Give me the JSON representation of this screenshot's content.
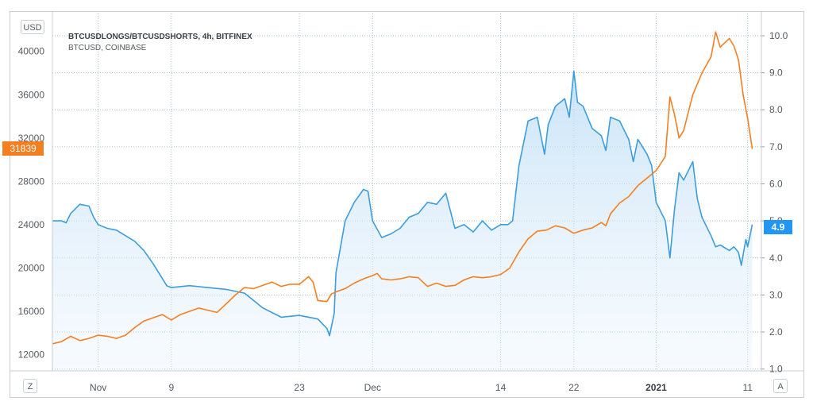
{
  "legend": {
    "series1": "BTCUSDLONGS/BTCUSDSHORTS, 4h, BITFINEX",
    "series2": "BTCUSD, COINBASE"
  },
  "buttons": {
    "currency": "USD",
    "zoom": "Z",
    "auto": "A"
  },
  "tags": {
    "left_price": "31839",
    "right_ratio": "4.9"
  },
  "colors": {
    "ratio_line": "#3b9ddd",
    "ratio_fill_top": "#cfe6f8",
    "price_line": "#f57f20",
    "grid": "#9fc3c9"
  },
  "chart_data": {
    "type": "line",
    "left_axis": {
      "ticks": [
        12000,
        16000,
        20000,
        24000,
        28000,
        32000,
        36000,
        40000
      ],
      "ylim": [
        10500,
        43500
      ]
    },
    "right_axis": {
      "ticks": [
        1.0,
        2.0,
        3.0,
        4.0,
        5.0,
        6.0,
        7.0,
        8.0,
        9.0,
        10.0
      ],
      "ylim": [
        0.95,
        10.6
      ]
    },
    "x_labels": [
      {
        "label": "Nov",
        "day": 5,
        "bold": false
      },
      {
        "label": "9",
        "day": 13,
        "bold": false
      },
      {
        "label": "23",
        "day": 27,
        "bold": false
      },
      {
        "label": "Dec",
        "day": 35,
        "bold": false
      },
      {
        "label": "14",
        "day": 49,
        "bold": false
      },
      {
        "label": "22",
        "day": 57,
        "bold": false
      },
      {
        "label": "2021",
        "day": 66,
        "bold": true
      },
      {
        "label": "11",
        "day": 76,
        "bold": false
      }
    ],
    "xlim": [
      0,
      77.5
    ],
    "series": [
      {
        "name": "BTCUSDLONGS/BTCUSDSHORTS",
        "axis": "right",
        "points": [
          [
            0,
            5.0
          ],
          [
            1,
            5.0
          ],
          [
            1.5,
            4.95
          ],
          [
            2,
            5.2
          ],
          [
            3,
            5.45
          ],
          [
            4,
            5.4
          ],
          [
            4.5,
            5.1
          ],
          [
            5,
            4.9
          ],
          [
            6,
            4.8
          ],
          [
            7,
            4.75
          ],
          [
            8,
            4.6
          ],
          [
            9,
            4.45
          ],
          [
            10,
            4.2
          ],
          [
            11,
            3.85
          ],
          [
            12,
            3.45
          ],
          [
            12.5,
            3.25
          ],
          [
            13,
            3.2
          ],
          [
            15,
            3.25
          ],
          [
            17,
            3.2
          ],
          [
            19,
            3.15
          ],
          [
            21,
            3.05
          ],
          [
            23,
            2.65
          ],
          [
            25,
            2.4
          ],
          [
            27,
            2.45
          ],
          [
            29,
            2.35
          ],
          [
            30,
            2.1
          ],
          [
            30.3,
            1.9
          ],
          [
            30.8,
            2.5
          ],
          [
            31,
            3.6
          ],
          [
            32,
            5.0
          ],
          [
            33,
            5.5
          ],
          [
            34,
            5.85
          ],
          [
            34.5,
            5.8
          ],
          [
            35,
            5.0
          ],
          [
            36,
            4.55
          ],
          [
            37,
            4.65
          ],
          [
            38,
            4.8
          ],
          [
            39,
            5.1
          ],
          [
            40,
            5.2
          ],
          [
            41,
            5.5
          ],
          [
            42,
            5.45
          ],
          [
            43,
            5.75
          ],
          [
            44,
            4.8
          ],
          [
            45,
            4.9
          ],
          [
            46,
            4.7
          ],
          [
            47,
            5.0
          ],
          [
            48,
            4.75
          ],
          [
            49,
            4.9
          ],
          [
            49.8,
            4.9
          ],
          [
            50.3,
            5.0
          ],
          [
            51,
            6.5
          ],
          [
            52,
            7.7
          ],
          [
            53,
            7.8
          ],
          [
            53.8,
            6.8
          ],
          [
            54.2,
            7.6
          ],
          [
            55,
            8.1
          ],
          [
            56,
            8.3
          ],
          [
            56.5,
            7.8
          ],
          [
            57,
            9.05
          ],
          [
            57.4,
            8.2
          ],
          [
            58,
            8.1
          ],
          [
            59,
            7.5
          ],
          [
            60,
            7.3
          ],
          [
            60.5,
            6.9
          ],
          [
            61,
            7.8
          ],
          [
            62,
            7.7
          ],
          [
            63,
            7.2
          ],
          [
            63.5,
            6.6
          ],
          [
            64,
            7.2
          ],
          [
            65,
            6.8
          ],
          [
            65.5,
            6.5
          ],
          [
            66,
            5.5
          ],
          [
            67,
            5.0
          ],
          [
            67.5,
            4.0
          ],
          [
            68,
            5.3
          ],
          [
            68.5,
            6.3
          ],
          [
            69,
            6.1
          ],
          [
            70,
            6.6
          ],
          [
            70.5,
            5.6
          ],
          [
            71,
            5.1
          ],
          [
            72,
            4.6
          ],
          [
            72.5,
            4.3
          ],
          [
            73,
            4.35
          ],
          [
            74,
            4.2
          ],
          [
            74.5,
            4.3
          ],
          [
            75,
            4.15
          ],
          [
            75.3,
            3.8
          ],
          [
            75.8,
            4.5
          ],
          [
            76,
            4.3
          ],
          [
            76.5,
            4.9
          ]
        ]
      },
      {
        "name": "BTCUSD",
        "axis": "left",
        "points": [
          [
            0,
            13000
          ],
          [
            1,
            13200
          ],
          [
            2,
            13700
          ],
          [
            3,
            13300
          ],
          [
            4,
            13500
          ],
          [
            5,
            13800
          ],
          [
            6,
            13700
          ],
          [
            7,
            13500
          ],
          [
            8,
            13800
          ],
          [
            9,
            14500
          ],
          [
            10,
            15100
          ],
          [
            11,
            15400
          ],
          [
            12,
            15700
          ],
          [
            13,
            15200
          ],
          [
            14,
            15700
          ],
          [
            15,
            16000
          ],
          [
            16,
            16300
          ],
          [
            18,
            15900
          ],
          [
            20,
            17500
          ],
          [
            21,
            18200
          ],
          [
            22,
            18100
          ],
          [
            24,
            18700
          ],
          [
            25,
            18300
          ],
          [
            26,
            18500
          ],
          [
            27,
            18500
          ],
          [
            28,
            19200
          ],
          [
            28.5,
            18700
          ],
          [
            29,
            17000
          ],
          [
            30,
            16900
          ],
          [
            30.5,
            17600
          ],
          [
            31,
            17800
          ],
          [
            32,
            18100
          ],
          [
            33,
            18600
          ],
          [
            34,
            19000
          ],
          [
            35,
            19300
          ],
          [
            35.5,
            19500
          ],
          [
            36,
            19000
          ],
          [
            37,
            18900
          ],
          [
            38,
            19000
          ],
          [
            39,
            19200
          ],
          [
            40,
            19100
          ],
          [
            41,
            18300
          ],
          [
            42,
            18600
          ],
          [
            43,
            18300
          ],
          [
            44,
            18400
          ],
          [
            45,
            18900
          ],
          [
            46,
            19200
          ],
          [
            47,
            19100
          ],
          [
            48,
            19200
          ],
          [
            49,
            19400
          ],
          [
            50,
            20000
          ],
          [
            51,
            21500
          ],
          [
            52,
            22700
          ],
          [
            53,
            23400
          ],
          [
            54,
            23500
          ],
          [
            55,
            23900
          ],
          [
            56,
            23700
          ],
          [
            57,
            23200
          ],
          [
            58,
            23500
          ],
          [
            59,
            23700
          ],
          [
            60,
            24200
          ],
          [
            60.5,
            23900
          ],
          [
            61,
            25000
          ],
          [
            62,
            26000
          ],
          [
            63,
            26600
          ],
          [
            64,
            27600
          ],
          [
            65,
            28300
          ],
          [
            66,
            29000
          ],
          [
            67,
            30300
          ],
          [
            67.5,
            35800
          ],
          [
            68,
            34200
          ],
          [
            68.5,
            32000
          ],
          [
            69,
            32700
          ],
          [
            70,
            36000
          ],
          [
            71,
            38000
          ],
          [
            72,
            39500
          ],
          [
            72.5,
            41800
          ],
          [
            73,
            40400
          ],
          [
            74,
            41200
          ],
          [
            74.5,
            40500
          ],
          [
            75,
            39200
          ],
          [
            75.5,
            36000
          ],
          [
            76,
            33800
          ],
          [
            76.5,
            31000
          ]
        ]
      }
    ]
  }
}
